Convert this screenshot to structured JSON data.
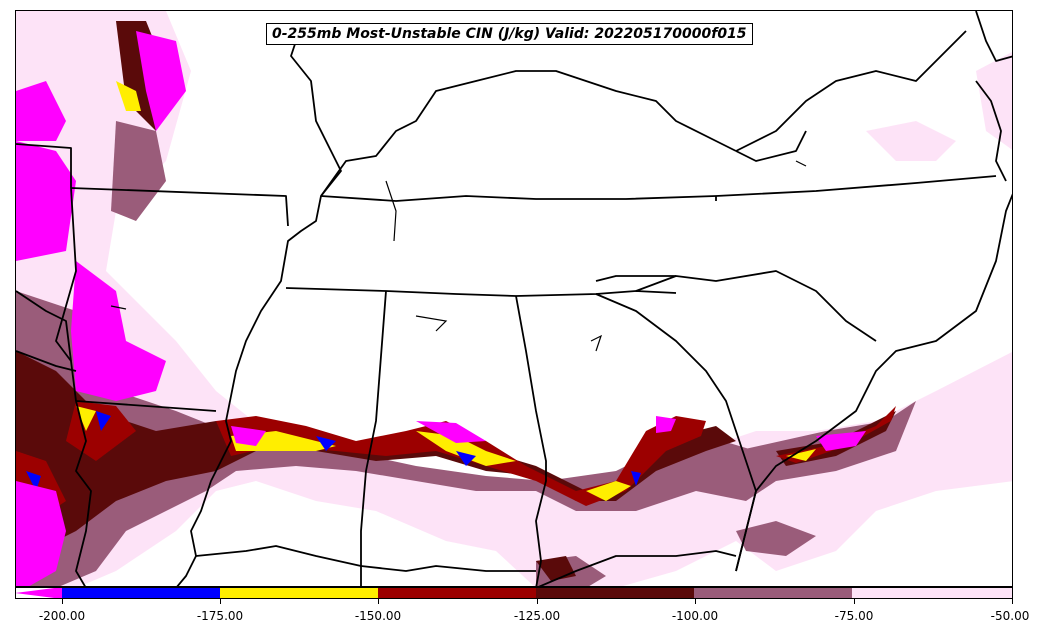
{
  "title": "0-255mb Most-Unstable CIN (J/kg) Valid: 202205170000f015",
  "colors": {
    "lt_-175": "#ff00ff",
    "-175_-150": "#0000ff",
    "-150_-125": "#ffee00",
    "-125_-100": "#9c0000",
    "-100_-75": "#5a0a0a",
    "-75_-50": "#9a5c7a",
    "gt_-50": "#fde3f7"
  },
  "colorbar": {
    "ticks": [
      "-200.00",
      "-175.00",
      "-150.00",
      "-125.00",
      "-100.00",
      "-75.00",
      "-50.00"
    ],
    "values": [
      -200,
      -175,
      -150,
      -125,
      -100,
      -75,
      -50
    ]
  }
}
